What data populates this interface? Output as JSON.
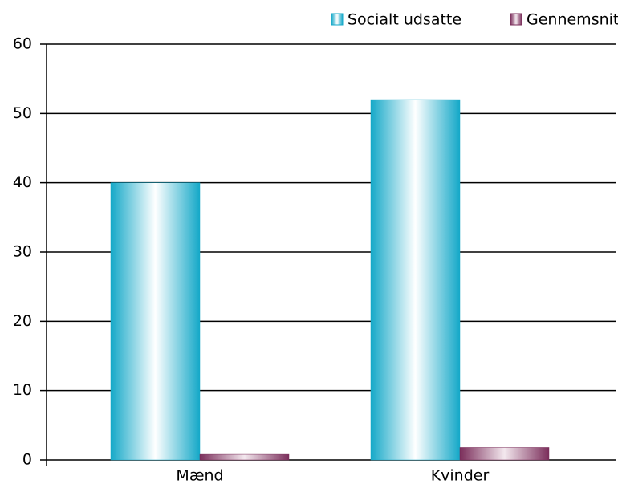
{
  "chart_data": {
    "type": "bar",
    "categories": [
      "Mænd",
      "Kvinder"
    ],
    "series": [
      {
        "name": "Socialt udsatte",
        "color": "#14a8c8",
        "values": [
          40,
          52
        ]
      },
      {
        "name": "Gennemsnittet af danskerne",
        "color": "#7a2d5a",
        "values": [
          0.8,
          1.8
        ]
      }
    ],
    "ylim": [
      0,
      60
    ],
    "yticks": [
      0,
      10,
      20,
      30,
      40,
      50,
      60
    ],
    "grid": true,
    "legend": "top-right"
  }
}
